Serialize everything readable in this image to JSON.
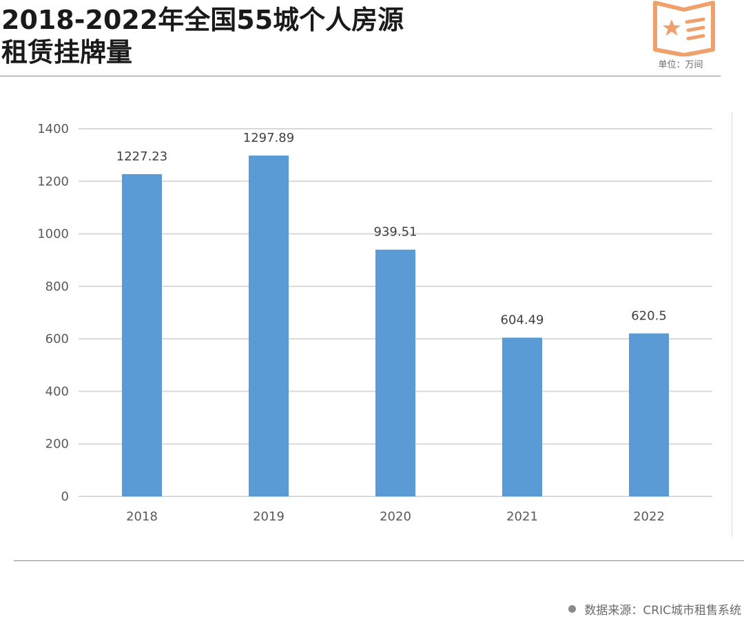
{
  "header": {
    "title_line1": "2018-2022年全国55城个人房源",
    "title_line2": "租赁挂牌量",
    "unit": "单位：万间",
    "logo_icon": "star-list-icon"
  },
  "footer": {
    "source": "数据来源：CRIC城市租售系统"
  },
  "colors": {
    "bar": "#5b9bd5",
    "grid": "#d9d9d9",
    "axis_text": "#595959",
    "label_text": "#404040",
    "logo": "#f0a06a"
  },
  "chart_data": {
    "type": "bar",
    "title": "2018-2022年全国55城个人房源租赁挂牌量",
    "xlabel": "",
    "ylabel": "",
    "unit": "万间",
    "categories": [
      "2018",
      "2019",
      "2020",
      "2021",
      "2022"
    ],
    "values": [
      1227.23,
      1297.89,
      939.51,
      604.49,
      620.5
    ],
    "data_labels": [
      "1227.23",
      "1297.89",
      "939.51",
      "604.49",
      "620.5"
    ],
    "ylim": [
      0,
      1400
    ],
    "yticks": [
      0,
      200,
      400,
      600,
      800,
      1000,
      1200,
      1400
    ],
    "grid": true,
    "legend": false
  }
}
